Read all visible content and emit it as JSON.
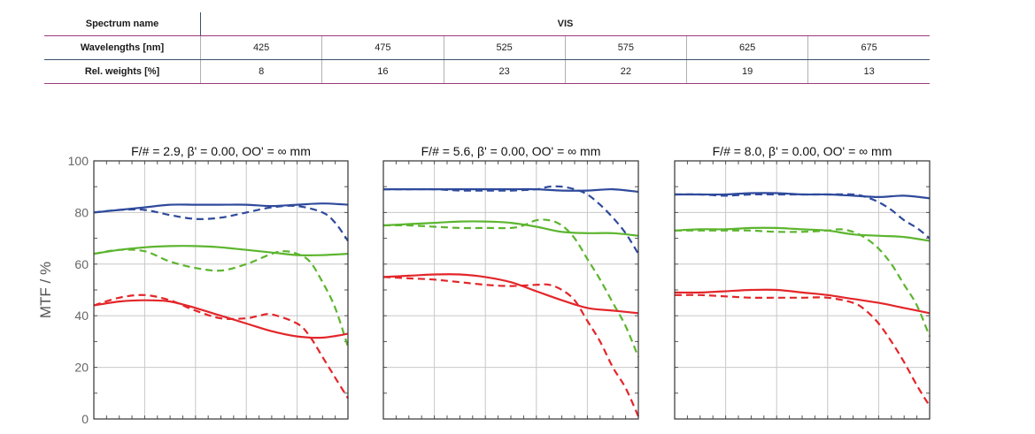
{
  "table": {
    "spectrum_label": "Spectrum name",
    "spectrum_value": "VIS",
    "wavelength_label": "Wavelengths [nm]",
    "wavelengths": [
      "425",
      "475",
      "525",
      "575",
      "625",
      "675"
    ],
    "weights_label": "Rel. weights [%]",
    "weights": [
      "8",
      "16",
      "23",
      "22",
      "19",
      "13"
    ]
  },
  "colors": {
    "blue": "#2f4a9c",
    "green": "#5cb52e",
    "red": "#e3262a"
  },
  "chart_data": [
    {
      "type": "line",
      "title": "F/# = 2.9, β' = 0.00, OO' = ∞ mm",
      "ylabel": "MTF / %",
      "ylim": [
        0,
        100
      ],
      "yticks": [
        "0",
        "20",
        "40",
        "60",
        "80",
        "100"
      ],
      "xlim": [
        0,
        1
      ],
      "grid": true,
      "series": [
        {
          "color": "blue",
          "style": "solid",
          "x": [
            0,
            0.1,
            0.2,
            0.3,
            0.4,
            0.5,
            0.6,
            0.7,
            0.8,
            0.9,
            1.0
          ],
          "y": [
            80,
            81,
            82,
            83,
            83,
            83,
            83,
            82.5,
            83,
            83.5,
            83
          ]
        },
        {
          "color": "blue",
          "style": "dashed",
          "x": [
            0,
            0.1,
            0.2,
            0.3,
            0.4,
            0.5,
            0.6,
            0.7,
            0.8,
            0.9,
            0.95,
            1.0
          ],
          "y": [
            80,
            81,
            81,
            79,
            77.5,
            78,
            80,
            82,
            82.5,
            80,
            76,
            69
          ]
        },
        {
          "color": "green",
          "style": "solid",
          "x": [
            0,
            0.1,
            0.2,
            0.3,
            0.4,
            0.5,
            0.6,
            0.7,
            0.8,
            0.9,
            1.0
          ],
          "y": [
            64,
            65.5,
            66.5,
            67,
            67,
            66.5,
            65.5,
            64.5,
            63.5,
            63.5,
            64
          ]
        },
        {
          "color": "green",
          "style": "dashed",
          "x": [
            0,
            0.1,
            0.2,
            0.3,
            0.4,
            0.5,
            0.6,
            0.7,
            0.75,
            0.8,
            0.85,
            0.9,
            0.95,
            1.0
          ],
          "y": [
            64,
            65.5,
            65,
            61,
            58.5,
            57.5,
            60,
            64,
            65,
            64,
            61,
            53,
            43,
            28
          ]
        },
        {
          "color": "red",
          "style": "solid",
          "x": [
            0,
            0.1,
            0.2,
            0.3,
            0.4,
            0.5,
            0.6,
            0.7,
            0.8,
            0.9,
            1.0
          ],
          "y": [
            44,
            45.5,
            46,
            45.5,
            43,
            40,
            37,
            34,
            32,
            31.5,
            33
          ]
        },
        {
          "color": "red",
          "style": "dashed",
          "x": [
            0,
            0.1,
            0.2,
            0.3,
            0.4,
            0.5,
            0.6,
            0.65,
            0.7,
            0.8,
            0.85,
            0.9,
            0.95,
            1.0
          ],
          "y": [
            44,
            47,
            48,
            46,
            42,
            39,
            39,
            40,
            40.5,
            37,
            32,
            24,
            16,
            8
          ]
        }
      ]
    },
    {
      "type": "line",
      "title": "F/# = 5.6, β' = 0.00, OO' = ∞ mm",
      "ylim": [
        0,
        100
      ],
      "xlim": [
        0,
        1
      ],
      "grid": true,
      "series": [
        {
          "color": "blue",
          "style": "solid",
          "x": [
            0,
            0.1,
            0.2,
            0.3,
            0.4,
            0.5,
            0.6,
            0.7,
            0.8,
            0.9,
            1.0
          ],
          "y": [
            89,
            89,
            89,
            89,
            89,
            89,
            89,
            88.5,
            88.5,
            89,
            88
          ]
        },
        {
          "color": "blue",
          "style": "dashed",
          "x": [
            0,
            0.1,
            0.2,
            0.3,
            0.4,
            0.5,
            0.6,
            0.65,
            0.7,
            0.75,
            0.8,
            0.85,
            0.9,
            0.95,
            1.0
          ],
          "y": [
            89,
            89,
            89,
            88.5,
            88.5,
            88.5,
            89,
            90,
            90,
            89,
            87,
            83,
            78,
            72,
            64
          ]
        },
        {
          "color": "green",
          "style": "solid",
          "x": [
            0,
            0.1,
            0.2,
            0.3,
            0.4,
            0.5,
            0.6,
            0.7,
            0.8,
            0.9,
            1.0
          ],
          "y": [
            75,
            75.5,
            76,
            76.5,
            76.5,
            76,
            74.5,
            72.5,
            72,
            72,
            71
          ]
        },
        {
          "color": "green",
          "style": "dashed",
          "x": [
            0,
            0.1,
            0.2,
            0.3,
            0.4,
            0.5,
            0.55,
            0.6,
            0.65,
            0.7,
            0.75,
            0.8,
            0.85,
            0.9,
            0.95,
            1.0
          ],
          "y": [
            75,
            75,
            74.5,
            74,
            74,
            74,
            75,
            77,
            77,
            75,
            70,
            62,
            54,
            45,
            36,
            24
          ]
        },
        {
          "color": "red",
          "style": "solid",
          "x": [
            0,
            0.1,
            0.2,
            0.3,
            0.4,
            0.5,
            0.6,
            0.7,
            0.8,
            0.9,
            1.0
          ],
          "y": [
            55,
            55.5,
            56,
            56,
            55,
            53,
            49.5,
            46,
            43,
            42,
            41
          ]
        },
        {
          "color": "red",
          "style": "dashed",
          "x": [
            0,
            0.1,
            0.2,
            0.3,
            0.4,
            0.5,
            0.6,
            0.65,
            0.7,
            0.75,
            0.8,
            0.85,
            0.9,
            0.95,
            1.0
          ],
          "y": [
            55,
            54.5,
            54,
            53,
            52,
            51.5,
            52,
            52,
            50,
            46,
            38,
            30,
            20,
            12,
            1
          ]
        }
      ]
    },
    {
      "type": "line",
      "title": "F/# = 8.0, β' = 0.00, OO' = ∞ mm",
      "ylim": [
        0,
        100
      ],
      "xlim": [
        0,
        1
      ],
      "grid": true,
      "series": [
        {
          "color": "blue",
          "style": "solid",
          "x": [
            0,
            0.1,
            0.2,
            0.3,
            0.4,
            0.5,
            0.6,
            0.7,
            0.8,
            0.9,
            1.0
          ],
          "y": [
            87,
            87,
            87,
            87.5,
            87.5,
            87,
            87,
            86.5,
            86,
            86.5,
            85.5
          ]
        },
        {
          "color": "blue",
          "style": "dashed",
          "x": [
            0,
            0.1,
            0.2,
            0.3,
            0.4,
            0.5,
            0.6,
            0.7,
            0.75,
            0.8,
            0.85,
            0.9,
            0.95,
            1.0
          ],
          "y": [
            87,
            87,
            86.5,
            87,
            87,
            87,
            87,
            87,
            86,
            84,
            81,
            77,
            74,
            70
          ]
        },
        {
          "color": "green",
          "style": "solid",
          "x": [
            0,
            0.1,
            0.2,
            0.3,
            0.4,
            0.5,
            0.6,
            0.7,
            0.8,
            0.9,
            1.0
          ],
          "y": [
            73,
            73.5,
            73.5,
            74,
            74,
            73.5,
            73,
            71.5,
            71,
            70.5,
            69
          ]
        },
        {
          "color": "green",
          "style": "dashed",
          "x": [
            0,
            0.1,
            0.2,
            0.3,
            0.4,
            0.5,
            0.6,
            0.65,
            0.7,
            0.75,
            0.8,
            0.85,
            0.9,
            0.95,
            1.0
          ],
          "y": [
            73,
            73,
            73,
            73,
            72.5,
            72.5,
            73,
            73.5,
            72.5,
            70,
            66,
            60,
            52,
            44,
            32
          ]
        },
        {
          "color": "red",
          "style": "solid",
          "x": [
            0,
            0.1,
            0.2,
            0.3,
            0.4,
            0.5,
            0.6,
            0.7,
            0.8,
            0.9,
            1.0
          ],
          "y": [
            49,
            49,
            49.5,
            50,
            50,
            49,
            48,
            46.5,
            45,
            43,
            41
          ]
        },
        {
          "color": "red",
          "style": "dashed",
          "x": [
            0,
            0.1,
            0.2,
            0.3,
            0.4,
            0.5,
            0.6,
            0.7,
            0.75,
            0.8,
            0.85,
            0.9,
            0.95,
            1.0
          ],
          "y": [
            48,
            48,
            47.5,
            47,
            47,
            47,
            47,
            45,
            42,
            37,
            30,
            22,
            13,
            5
          ]
        }
      ]
    }
  ]
}
